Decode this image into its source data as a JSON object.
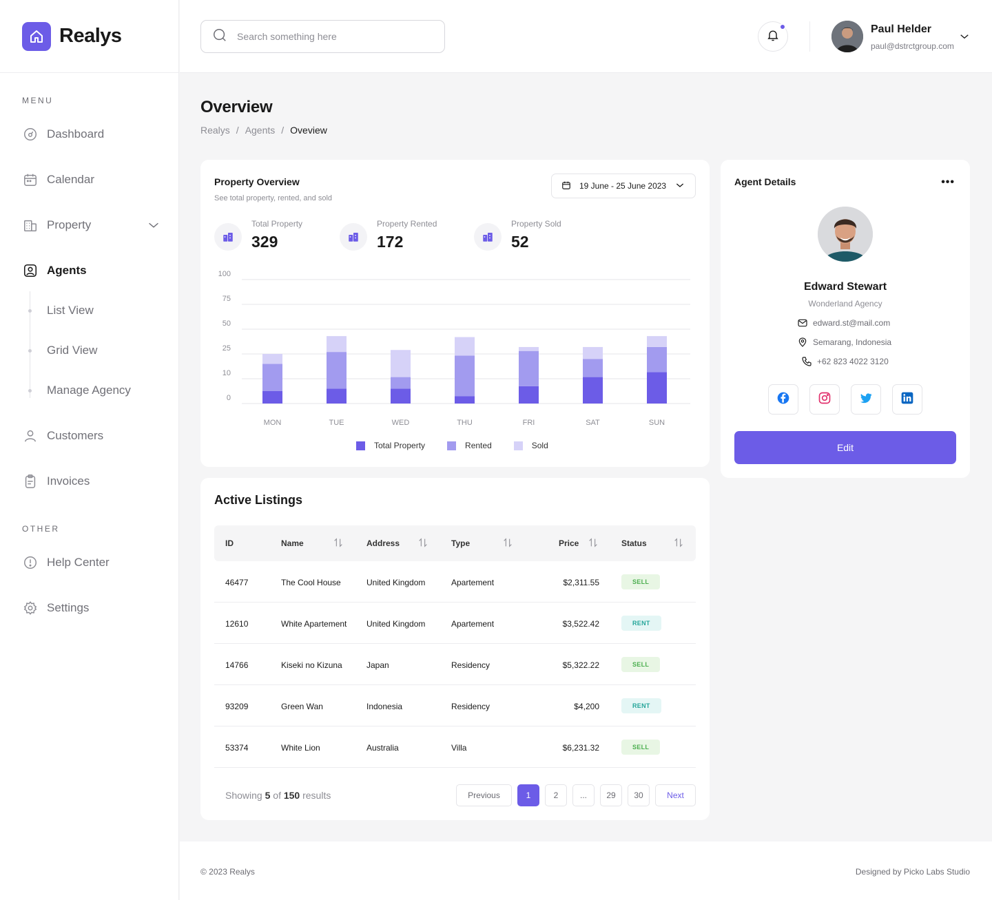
{
  "app": {
    "name": "Realys"
  },
  "sidebar": {
    "menu_label": "MENU",
    "other_label": "OTHER",
    "items": [
      {
        "label": "Dashboard",
        "icon": "dashboard-icon"
      },
      {
        "label": "Calendar",
        "icon": "calendar-icon"
      },
      {
        "label": "Property",
        "icon": "building-icon"
      },
      {
        "label": "Agents",
        "icon": "agent-icon",
        "active": true
      },
      {
        "label": "Customers",
        "icon": "user-icon"
      },
      {
        "label": "Invoices",
        "icon": "clipboard-icon"
      }
    ],
    "agents_sub": [
      "List View",
      "Grid View",
      "Manage Agency"
    ],
    "other_items": [
      {
        "label": "Help Center",
        "icon": "info-icon"
      },
      {
        "label": "Settings",
        "icon": "gear-icon"
      }
    ]
  },
  "header": {
    "search_placeholder": "Search something here",
    "user_name": "Paul Helder",
    "user_email": "paul@dstrctgroup.com"
  },
  "page": {
    "title": "Overview",
    "breadcrumb": [
      "Realys",
      "Agents",
      "Oveview"
    ]
  },
  "property_overview": {
    "title": "Property Overview",
    "subtitle": "See total property, rented, and sold",
    "date_range": "19 June - 25 June 2023",
    "stats": [
      {
        "label": "Total Property",
        "value": "329"
      },
      {
        "label": "Property Rented",
        "value": "172"
      },
      {
        "label": "Property Sold",
        "value": "52"
      }
    ]
  },
  "chart_data": {
    "type": "bar",
    "stacked": true,
    "categories": [
      "MON",
      "TUE",
      "WED",
      "THU",
      "FRI",
      "SAT",
      "SUN"
    ],
    "y_ticks": [
      "100",
      "75",
      "50",
      "25",
      "10",
      "0"
    ],
    "series": [
      {
        "name": "Total Property",
        "color": "#6c5ce7",
        "values": [
          5,
          6,
          6,
          3,
          7,
          11,
          14
        ]
      },
      {
        "name": "Rented",
        "color": "#a29bef",
        "values": [
          14,
          21,
          5,
          21,
          21,
          11,
          18
        ]
      },
      {
        "name": "Sold",
        "color": "#d6d2f8",
        "values": [
          6,
          16,
          18,
          18,
          4,
          10,
          11
        ]
      }
    ],
    "grid": true,
    "legend_position": "bottom"
  },
  "agent": {
    "section_title": "Agent Details",
    "name": "Edward Stewart",
    "agency": "Wonderland Agency",
    "email": "edward.st@mail.com",
    "location": "Semarang, Indonesia",
    "phone": "+62 823 4022 3120",
    "edit_label": "Edit",
    "socials": [
      "facebook-icon",
      "instagram-icon",
      "twitter-icon",
      "linkedin-icon"
    ]
  },
  "listings": {
    "title": "Active Listings",
    "columns": [
      "ID",
      "Name",
      "Address",
      "Type",
      "Price",
      "Status"
    ],
    "rows": [
      {
        "id": "46477",
        "name": "The Cool House",
        "address": "United Kingdom",
        "type": "Apartement",
        "price": "$2,311.55",
        "status": "SELL"
      },
      {
        "id": "12610",
        "name": "White Apartement",
        "address": "United Kingdom",
        "type": "Apartement",
        "price": "$3,522.42",
        "status": "RENT"
      },
      {
        "id": "14766",
        "name": "Kiseki no Kizuna",
        "address": "Japan",
        "type": "Residency",
        "price": "$5,322.22",
        "status": "SELL"
      },
      {
        "id": "93209",
        "name": "Green Wan",
        "address": "Indonesia",
        "type": "Residency",
        "price": "$4,200",
        "status": "RENT"
      },
      {
        "id": "53374",
        "name": "White Lion",
        "address": "Australia",
        "type": "Villa",
        "price": "$6,231.32",
        "status": "SELL"
      }
    ],
    "showing_prefix": "Showing",
    "showing_count": "5",
    "showing_of": "of",
    "showing_total": "150",
    "showing_suffix": "results",
    "pagination": [
      "Previous",
      "1",
      "2",
      "...",
      "29",
      "30",
      "Next"
    ]
  },
  "footer": {
    "copyright": "© 2023 Realys",
    "credit": "Designed by Picko Labs Studio"
  }
}
